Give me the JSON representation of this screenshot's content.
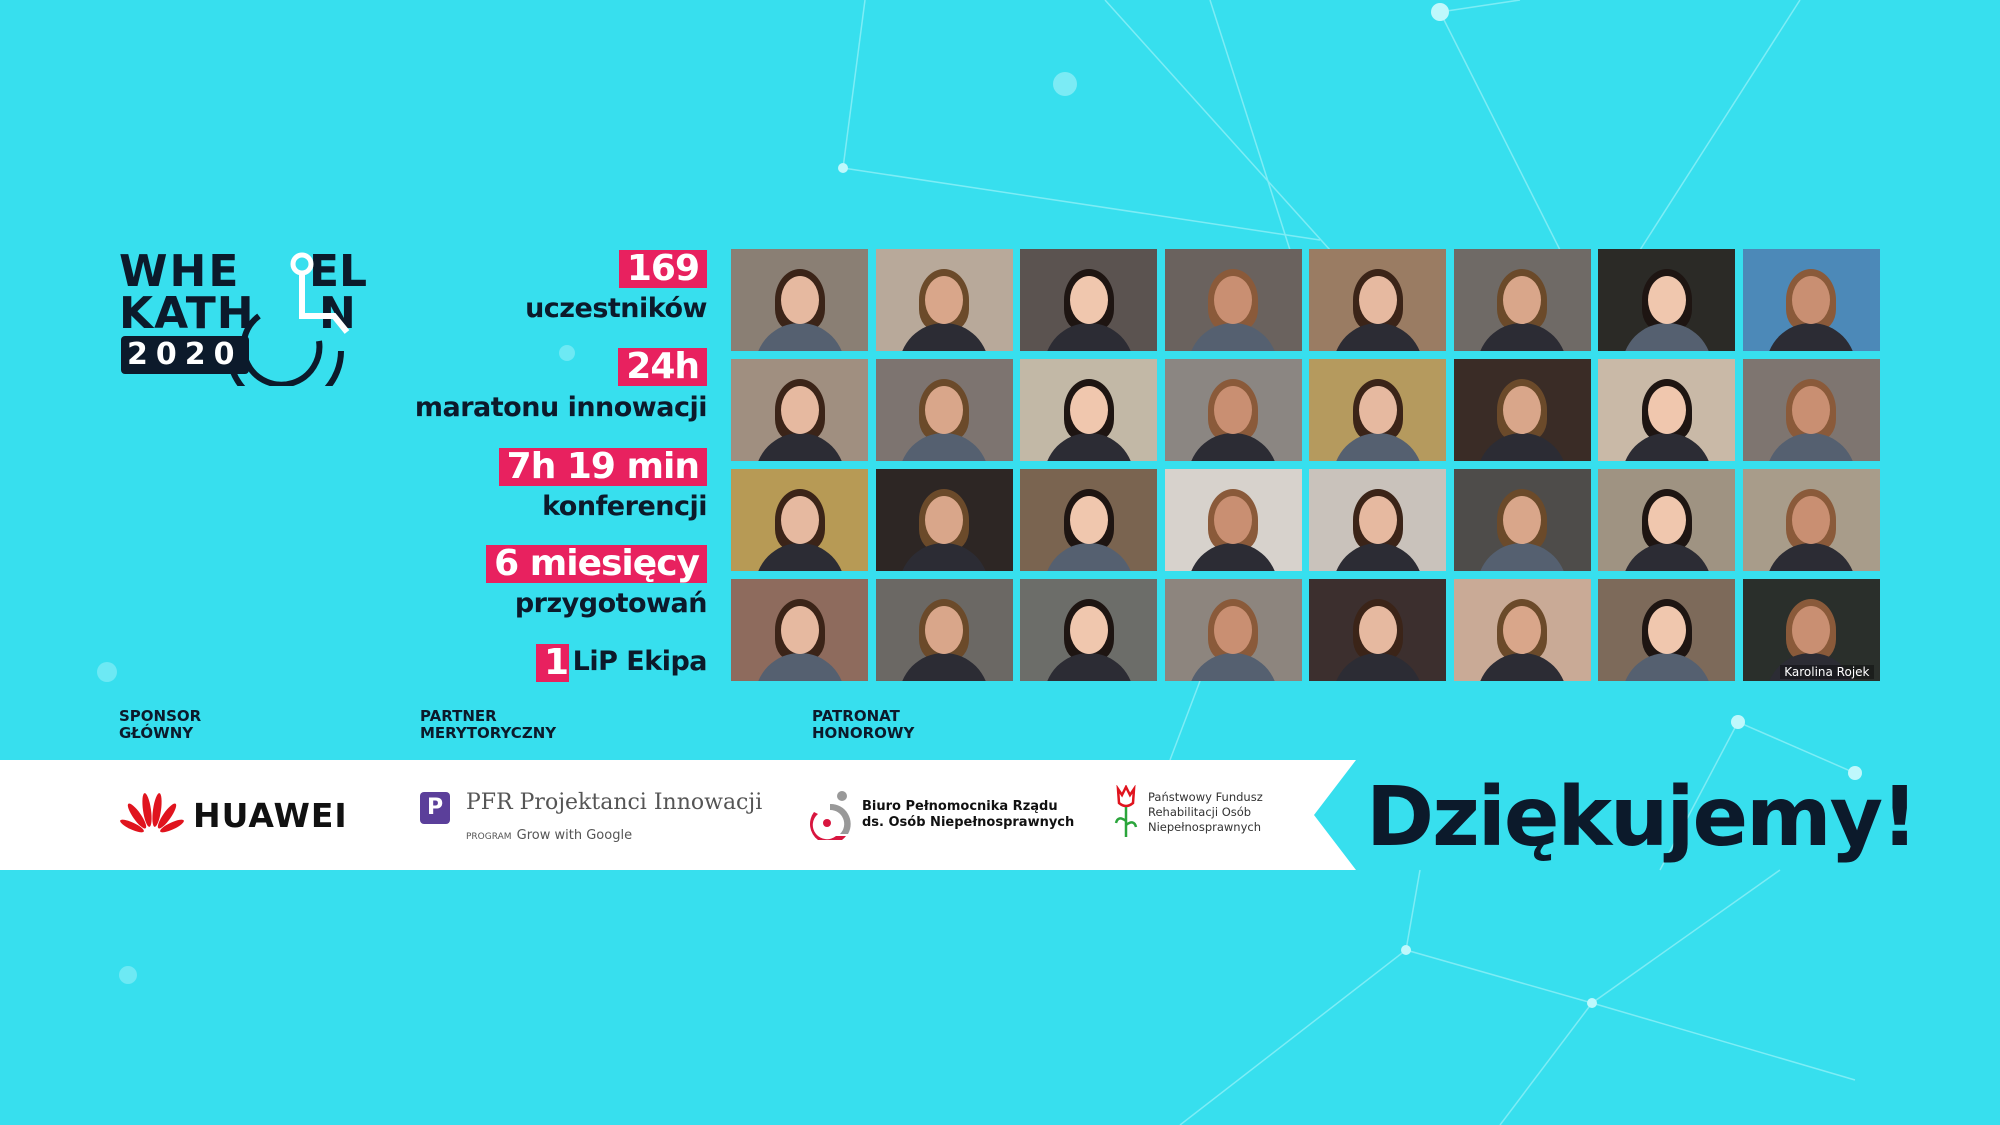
{
  "colors": {
    "background": "#37dfee",
    "accent": "#e8215f",
    "dark": "#0c1a2b",
    "band": "#ffffff"
  },
  "logo": {
    "line1": "WHEEL",
    "line2": "KATHON",
    "year": "2020"
  },
  "stats": [
    {
      "value": "169",
      "label": "uczestników"
    },
    {
      "value": "24h",
      "label": "maratonu innowacji"
    },
    {
      "value": "7h 19 min",
      "label": "konferencji"
    },
    {
      "value": "6 miesięcy",
      "label": "przygotowań"
    },
    {
      "value": "1",
      "label": "LiP Ekipa"
    }
  ],
  "video_grid": {
    "tiles": [
      "#8a7f74",
      "#b8a99a",
      "#5b5350",
      "#6a625e",
      "#9a7c63",
      "#6f6a66",
      "#2b2a26",
      "#4c89b8",
      "#a08f80",
      "#7d7470",
      "#c2b8a6",
      "#8b8682",
      "#b59a5e",
      "#3a2c26",
      "#c9b9a7",
      "#7e7570",
      "#b79a55",
      "#2d2624",
      "#7a6450",
      "#d7d2cc",
      "#c9c2bb",
      "#4e4c4a",
      "#9f9382",
      "#a89c8a",
      "#8e6b5d",
      "#6b6864",
      "#6c6d69",
      "#8d857e",
      "#3c2f2e",
      "#c9aa96",
      "#7d6a5a",
      "#2a2f2b"
    ],
    "name_label": "Karolina Rojek"
  },
  "partners": {
    "sponsor_label": [
      "SPONSOR",
      "GŁÓWNY"
    ],
    "partner_label": [
      "PARTNER",
      "MERYTORYCZNY"
    ],
    "patronat_label": [
      "PATRONAT",
      "HONOROWY"
    ],
    "huawei": "HUAWEI",
    "pfr_title": "PFR Projektanci Innowacji",
    "pfr_program": "PROGRAM",
    "pfr_google": "Grow with Google",
    "biuro": [
      "Biuro Pełnomocnika Rządu",
      "ds. Osób Niepełnosprawnych"
    ],
    "pfron": [
      "Państwowy Fundusz",
      "Rehabilitacji Osób",
      "Niepełnosprawnych"
    ]
  },
  "thanks": "Dziękujemy!"
}
